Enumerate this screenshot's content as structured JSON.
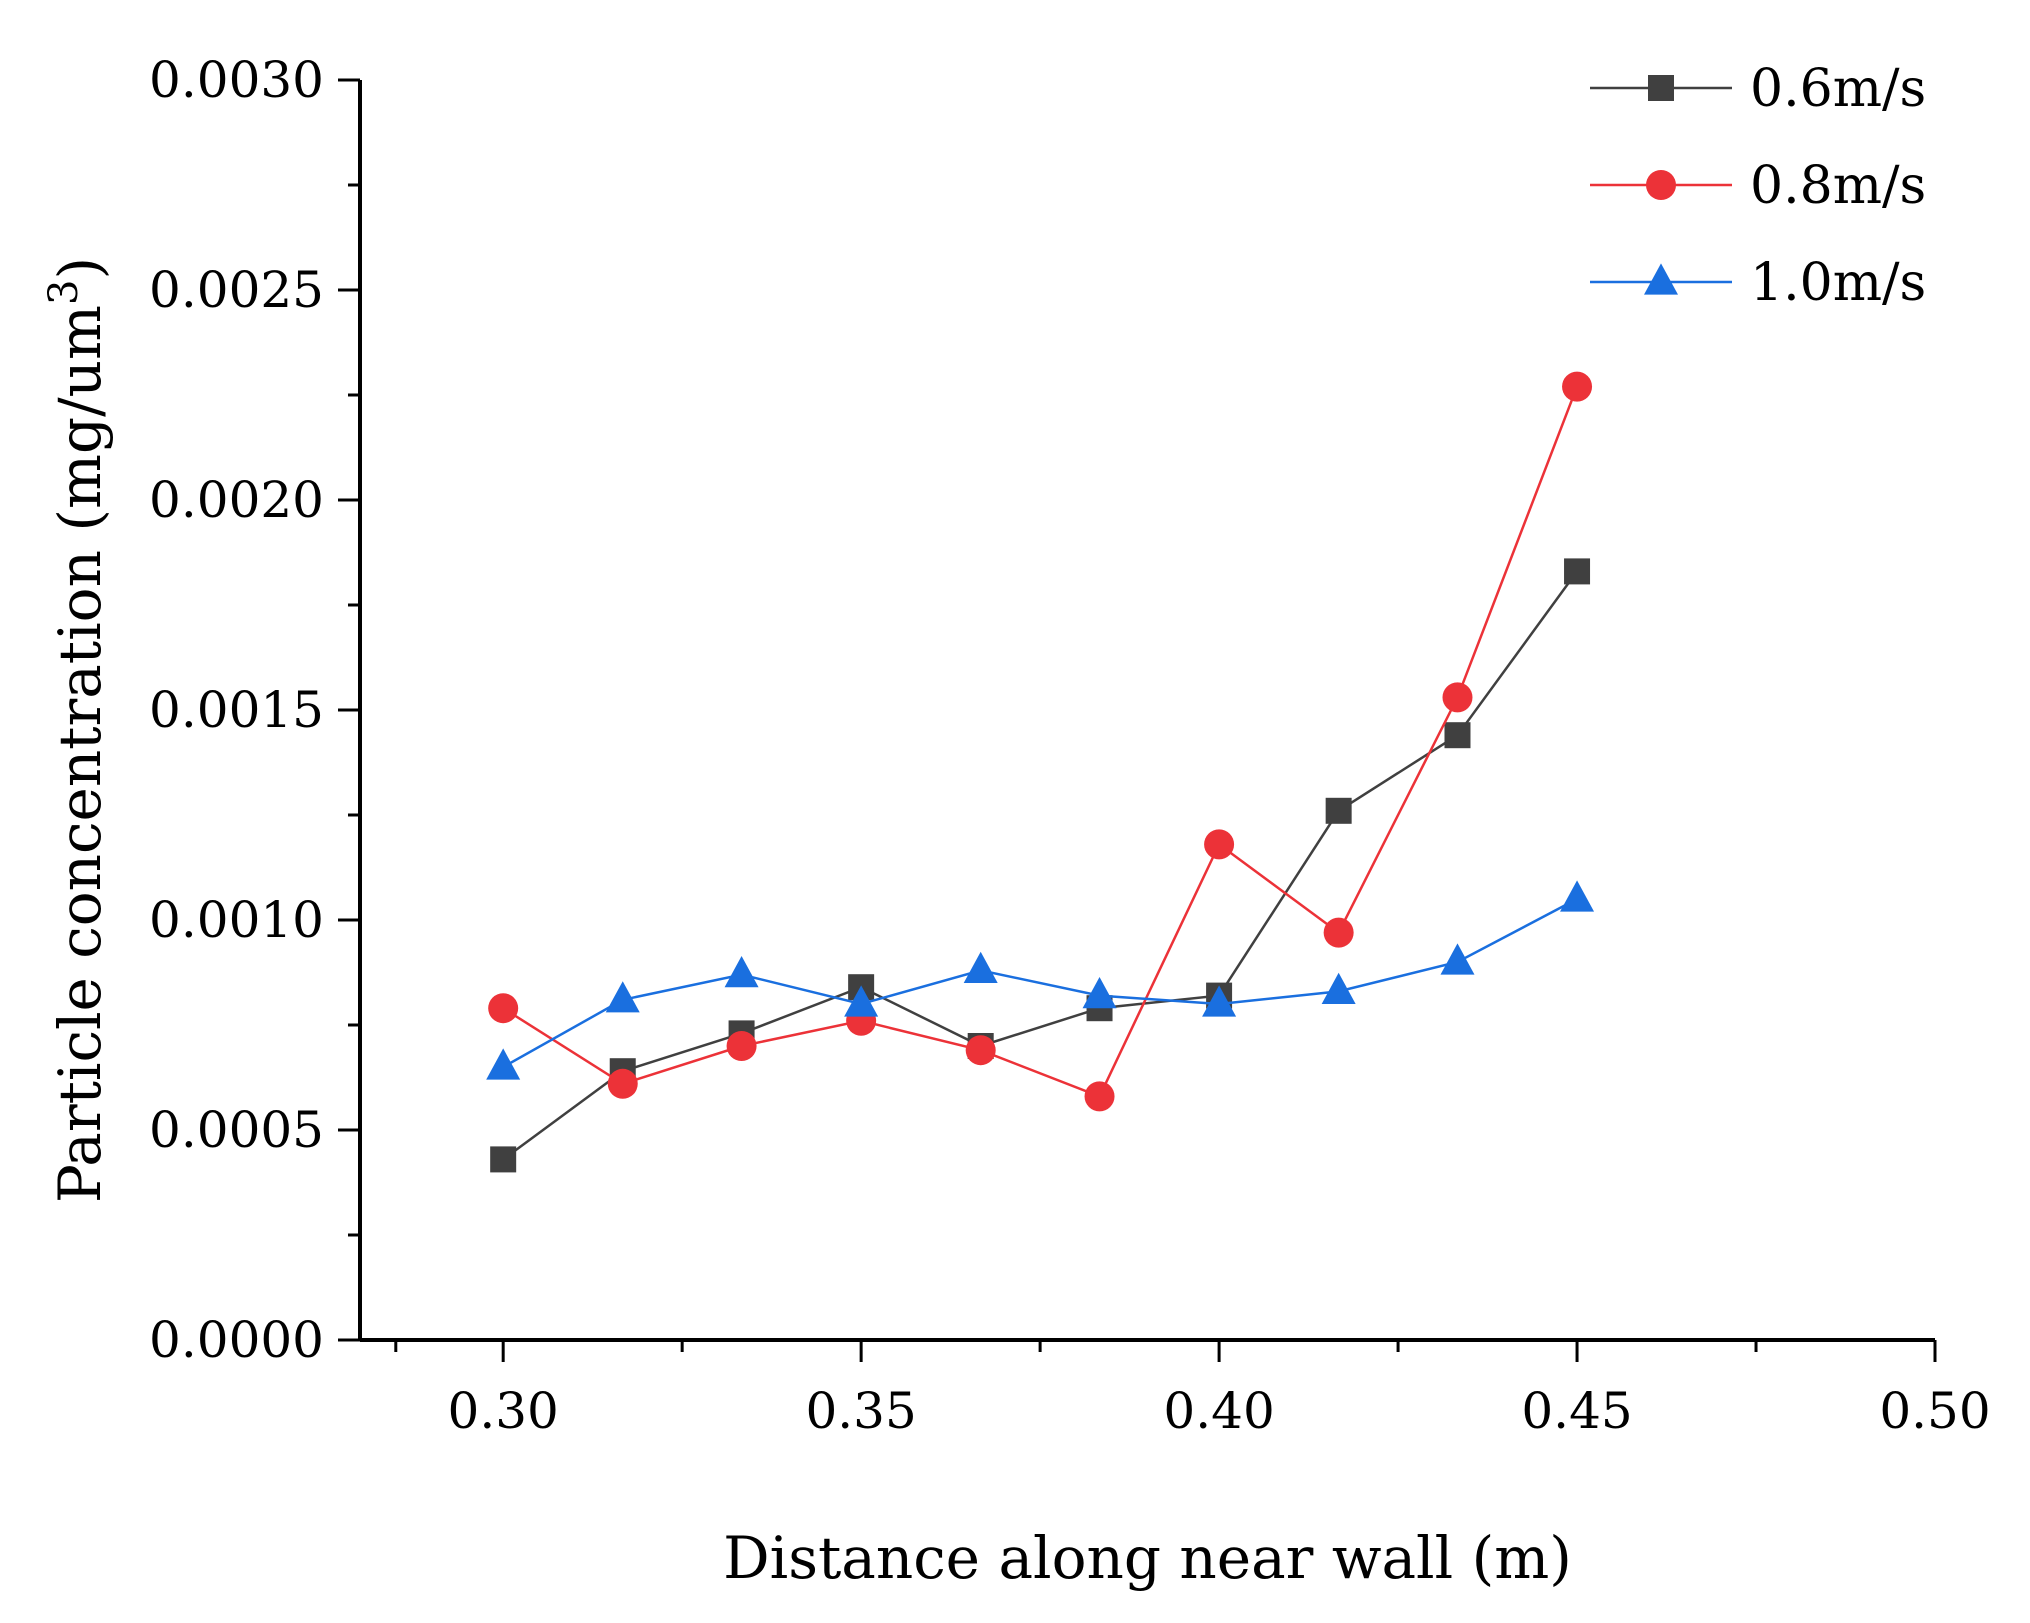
{
  "chart_data": {
    "type": "line",
    "title": "",
    "xlabel": "Distance along near wall (m)",
    "ylabel": "Particle concentration (mg/um",
    "ylabel_superscript": "3",
    "ylabel_suffix": ")",
    "xlim": [
      0.28,
      0.5
    ],
    "ylim": [
      0.0,
      0.003
    ],
    "x_ticks": [
      0.3,
      0.35,
      0.4,
      0.45,
      0.5
    ],
    "x_tick_labels": [
      "0.30",
      "0.35",
      "0.40",
      "0.45",
      "0.50"
    ],
    "y_ticks": [
      0.0,
      0.0005,
      0.001,
      0.0015,
      0.002,
      0.0025,
      0.003
    ],
    "y_tick_labels": [
      "0.0000",
      "0.0005",
      "0.0010",
      "0.0015",
      "0.0020",
      "0.0025",
      "0.0030"
    ],
    "grid": false,
    "legend_position": "top-right",
    "x": [
      0.3,
      0.3167,
      0.3333,
      0.35,
      0.3667,
      0.3833,
      0.4,
      0.4167,
      0.4333,
      0.45
    ],
    "series": [
      {
        "name": "0.6m/s",
        "color": "#404040",
        "marker": "square",
        "values": [
          0.00043,
          0.00064,
          0.00073,
          0.00084,
          0.0007,
          0.00079,
          0.00082,
          0.00126,
          0.00144,
          0.00183
        ]
      },
      {
        "name": "0.8m/s",
        "color": "#ec3238",
        "marker": "circle",
        "values": [
          0.00079,
          0.00061,
          0.0007,
          0.00076,
          0.00069,
          0.00058,
          0.00118,
          0.00097,
          0.00153,
          0.00227
        ]
      },
      {
        "name": "1.0m/s",
        "color": "#1a6fdf",
        "marker": "triangle",
        "values": [
          0.00065,
          0.00081,
          0.00087,
          0.0008,
          0.00088,
          0.00082,
          0.0008,
          0.00083,
          0.0009,
          0.00105
        ]
      }
    ]
  }
}
